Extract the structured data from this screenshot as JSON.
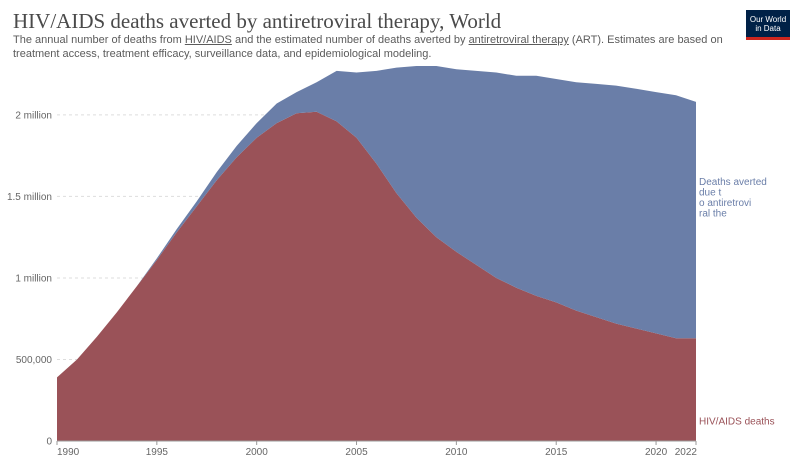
{
  "header": {
    "title": "HIV/AIDS deaths averted by antiretroviral therapy, World",
    "subtitle_pre": "The annual number of deaths from ",
    "subtitle_link1": "HIV/AIDS",
    "subtitle_mid": " and the estimated number of deaths averted by ",
    "subtitle_link2": "antiretroviral therapy",
    "subtitle_post": " (ART). Estimates are based on treatment access, treatment efficacy, surveillance data, and epidemiological modeling.",
    "logo_line1": "Our World",
    "logo_line2": "in Data"
  },
  "colors": {
    "deaths": "#9a5258",
    "averted": "#6a7ea8",
    "logo_bg": "#002147",
    "logo_accent": "#ce261e"
  },
  "chart_data": {
    "type": "area",
    "stacked": true,
    "x": [
      1990,
      1991,
      1992,
      1993,
      1994,
      1995,
      1996,
      1997,
      1998,
      1999,
      2000,
      2001,
      2002,
      2003,
      2004,
      2005,
      2006,
      2007,
      2008,
      2009,
      2010,
      2011,
      2012,
      2013,
      2014,
      2015,
      2016,
      2017,
      2018,
      2019,
      2020,
      2021,
      2022
    ],
    "series": [
      {
        "name": "HIV/AIDS deaths",
        "color": "#9a5258",
        "values": [
          390000,
          500000,
          640000,
          790000,
          950000,
          1110000,
          1280000,
          1440000,
          1600000,
          1740000,
          1860000,
          1950000,
          2010000,
          2020000,
          1960000,
          1860000,
          1700000,
          1520000,
          1370000,
          1250000,
          1160000,
          1080000,
          1000000,
          940000,
          890000,
          850000,
          800000,
          760000,
          720000,
          690000,
          660000,
          630000,
          630000
        ]
      },
      {
        "name": "Deaths averted due to antiretroviral therapy",
        "color": "#6a7ea8",
        "values": [
          0,
          0,
          0,
          0,
          0,
          10000,
          20000,
          30000,
          50000,
          70000,
          90000,
          120000,
          130000,
          180000,
          310000,
          400000,
          570000,
          770000,
          930000,
          1050000,
          1120000,
          1190000,
          1260000,
          1300000,
          1350000,
          1370000,
          1400000,
          1430000,
          1460000,
          1470000,
          1480000,
          1490000,
          1450000
        ]
      }
    ],
    "series_labels": [
      "HIV/AIDS deaths",
      "Deaths averted due to antiretroviral therapy"
    ],
    "x_ticks": [
      "1990",
      "1995",
      "2000",
      "2005",
      "2010",
      "2015",
      "2020",
      "2022"
    ],
    "y_ticks": [
      {
        "value": 0,
        "label": "0"
      },
      {
        "value": 500000,
        "label": "500,000"
      },
      {
        "value": 1000000,
        "label": "1 million"
      },
      {
        "value": 1500000,
        "label": "1.5 million"
      },
      {
        "value": 2000000,
        "label": "2 million"
      }
    ],
    "ylim": [
      0,
      2300000
    ],
    "grid": "horizontal dashed",
    "legend": "right, inline at line ends"
  }
}
